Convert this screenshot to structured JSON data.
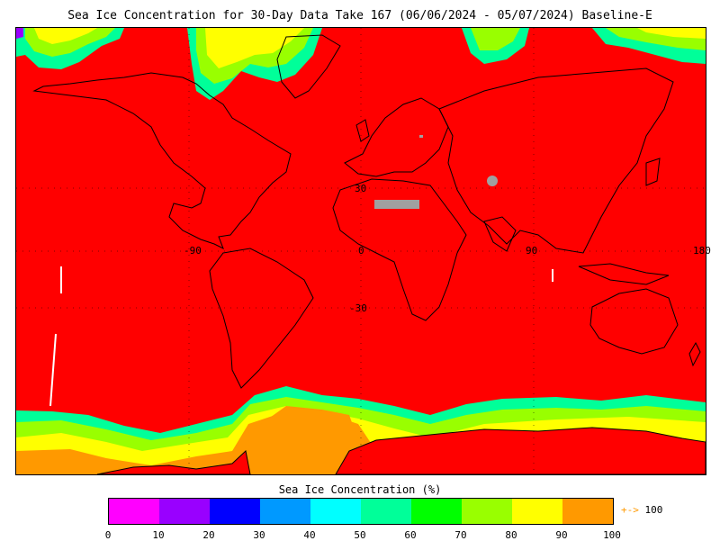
{
  "title": "Sea Ice Concentration for 30-Day Data Take 167 (06/06/2024 - 05/07/2024) Baseline-E",
  "map": {
    "projection": "Equirectangular",
    "lat_labels": [
      "30",
      "-30"
    ],
    "lon_labels": [
      "-90",
      "0",
      "90",
      "180"
    ],
    "ocean_color": "#ff0000",
    "land_outline_color": "#000000",
    "missing_color": "#a0a0a0"
  },
  "colorbar": {
    "title": "Sea Ice Concentration (%)",
    "ticks": [
      "0",
      "10",
      "20",
      "30",
      "40",
      "50",
      "60",
      "70",
      "80",
      "90",
      "100"
    ],
    "colors": [
      "#ff00ff",
      "#9900ff",
      "#0000ff",
      "#0099ff",
      "#00ffff",
      "#00ff99",
      "#00ff00",
      "#99ff00",
      "#ffff00",
      "#ff9900"
    ],
    "overflow_arrow": "+->",
    "overflow_value": "100"
  }
}
